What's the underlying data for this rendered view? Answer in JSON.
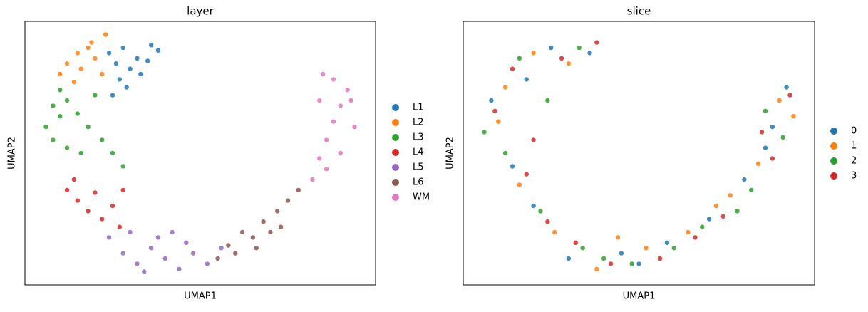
{
  "chart_data": [
    {
      "type": "scatter",
      "title": "layer",
      "xlabel": "UMAP1",
      "ylabel": "UMAP2",
      "xlim": [
        0,
        100
      ],
      "ylim": [
        0,
        100
      ],
      "series": [
        {
          "name": "L1",
          "color": "#1f77b4",
          "x": [
            24,
            28,
            32,
            36,
            38,
            30,
            27,
            33,
            25,
            29,
            35,
            26
          ],
          "values": [
            88,
            90,
            86,
            91,
            89,
            82,
            78,
            80,
            72,
            75,
            85,
            84
          ]
        },
        {
          "name": "L2",
          "color": "#ff7f0e",
          "x": [
            12,
            15,
            19,
            23,
            10,
            16,
            20,
            14,
            22,
            18
          ],
          "values": [
            84,
            88,
            92,
            95,
            80,
            82,
            86,
            77,
            80,
            90
          ]
        },
        {
          "name": "L3",
          "color": "#2ca02c",
          "x": [
            6,
            8,
            10,
            12,
            15,
            18,
            22,
            25,
            8,
            12,
            28,
            20,
            16,
            10
          ],
          "values": [
            60,
            68,
            74,
            70,
            65,
            60,
            55,
            50,
            55,
            52,
            45,
            72,
            50,
            64
          ]
        },
        {
          "name": "L4",
          "color": "#d62728",
          "x": [
            12,
            15,
            18,
            22,
            25,
            28,
            14,
            20,
            27
          ],
          "values": [
            36,
            32,
            28,
            25,
            30,
            36,
            40,
            35,
            22
          ]
        },
        {
          "name": "L5",
          "color": "#9467bd",
          "x": [
            24,
            28,
            32,
            36,
            40,
            44,
            48,
            52,
            56,
            30,
            38,
            46,
            34,
            42
          ],
          "values": [
            18,
            12,
            8,
            14,
            10,
            6,
            12,
            8,
            14,
            20,
            18,
            16,
            5,
            20
          ]
        },
        {
          "name": "L6",
          "color": "#8c564b",
          "x": [
            55,
            58,
            62,
            65,
            68,
            72,
            75,
            70,
            60,
            78,
            66,
            73
          ],
          "values": [
            10,
            15,
            20,
            18,
            24,
            28,
            32,
            20,
            12,
            36,
            14,
            22
          ]
        },
        {
          "name": "WM",
          "color": "#e377c2",
          "x": [
            82,
            84,
            86,
            88,
            90,
            92,
            88,
            85,
            94,
            90,
            86,
            93,
            84
          ],
          "values": [
            40,
            48,
            55,
            62,
            68,
            74,
            78,
            80,
            60,
            50,
            44,
            70,
            70
          ]
        }
      ]
    },
    {
      "type": "scatter",
      "title": "slice",
      "xlabel": "UMAP1",
      "ylabel": "UMAP2",
      "xlim": [
        0,
        100
      ],
      "ylim": [
        0,
        100
      ],
      "series": [
        {
          "name": "0",
          "color": "#1f77b4",
          "x": [
            25,
            8,
            14,
            20,
            30,
            45,
            58,
            70,
            80,
            88,
            92,
            36,
            18,
            50,
            86
          ],
          "values": [
            90,
            70,
            45,
            30,
            10,
            12,
            16,
            25,
            40,
            60,
            75,
            88,
            78,
            8,
            52
          ]
        },
        {
          "name": "1",
          "color": "#ff7f0e",
          "x": [
            20,
            10,
            16,
            26,
            38,
            52,
            64,
            76,
            84,
            90,
            30,
            12,
            44,
            72,
            94
          ],
          "values": [
            88,
            62,
            38,
            20,
            6,
            14,
            20,
            34,
            46,
            70,
            84,
            75,
            18,
            30,
            64
          ]
        },
        {
          "name": "2",
          "color": "#2ca02c",
          "x": [
            16,
            6,
            12,
            22,
            34,
            48,
            60,
            68,
            82,
            86,
            33,
            24,
            40,
            78,
            91
          ],
          "values": [
            86,
            58,
            50,
            28,
            14,
            8,
            14,
            22,
            36,
            66,
            90,
            70,
            10,
            28,
            56
          ]
        },
        {
          "name": "3",
          "color": "#d62728",
          "x": [
            28,
            9,
            18,
            24,
            32,
            42,
            56,
            66,
            74,
            85,
            93,
            14,
            38,
            88,
            20
          ],
          "values": [
            86,
            66,
            42,
            24,
            16,
            8,
            10,
            18,
            26,
            58,
            72,
            82,
            92,
            48,
            55
          ]
        }
      ]
    }
  ]
}
